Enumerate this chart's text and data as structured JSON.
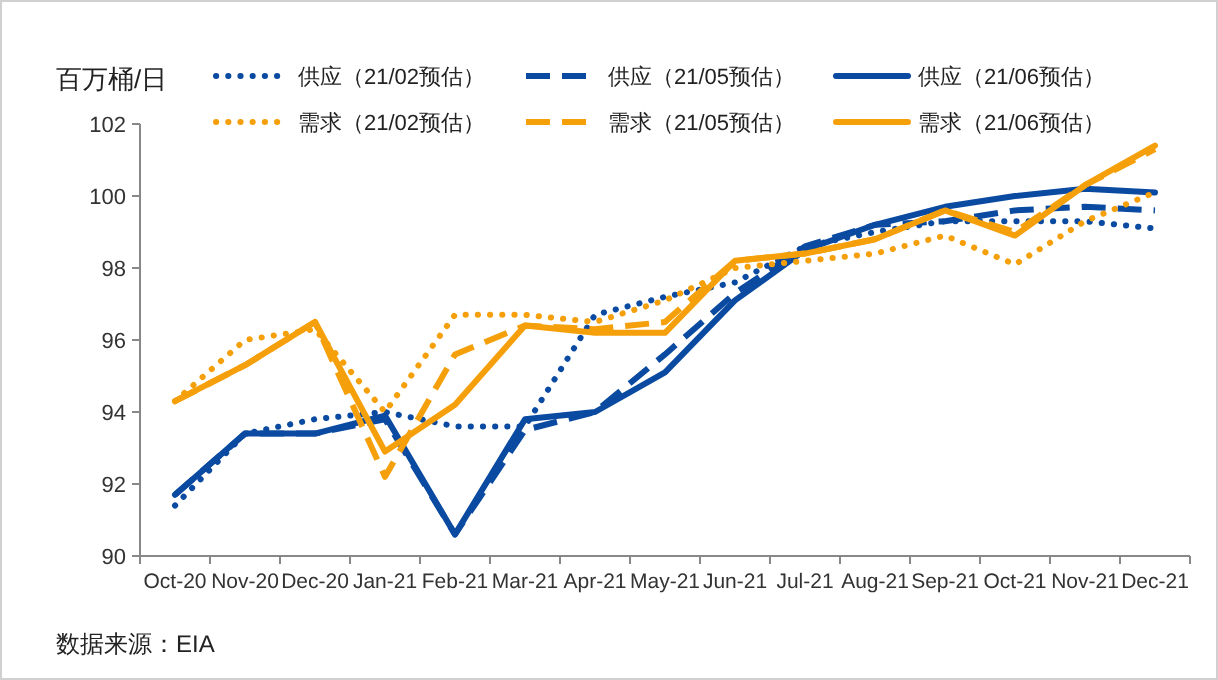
{
  "chart_data": {
    "type": "line",
    "ylabel": "百万桶/日",
    "categories": [
      "Oct-20",
      "Nov-20",
      "Dec-20",
      "Jan-21",
      "Feb-21",
      "Mar-21",
      "Apr-21",
      "May-21",
      "Jun-21",
      "Jul-21",
      "Aug-21",
      "Sep-21",
      "Oct-21",
      "Nov-21",
      "Dec-21"
    ],
    "series": [
      {
        "name": "供应（21/02预估）",
        "color": "#0a4aa0",
        "line_style": "dotted",
        "values": [
          91.4,
          93.4,
          93.8,
          94.0,
          93.6,
          93.6,
          96.7,
          97.2,
          97.6,
          98.6,
          99.0,
          99.3,
          99.3,
          99.3,
          99.1
        ]
      },
      {
        "name": "供应（21/05预估）",
        "color": "#0a4aa0",
        "line_style": "dashed",
        "values": [
          91.7,
          93.4,
          93.4,
          93.8,
          90.6,
          93.5,
          94.0,
          95.6,
          97.3,
          98.6,
          99.2,
          99.3,
          99.6,
          99.7,
          99.6
        ]
      },
      {
        "name": "供应（21/06预估）",
        "color": "#0a4aa0",
        "line_style": "solid",
        "values": [
          91.7,
          93.4,
          93.4,
          93.9,
          90.6,
          93.8,
          94.0,
          95.1,
          97.1,
          98.5,
          99.2,
          99.7,
          100.0,
          100.2,
          100.1
        ]
      },
      {
        "name": "需求（21/02预估）",
        "color": "#f5a00a",
        "line_style": "dotted",
        "values": [
          94.3,
          96.0,
          96.3,
          94.0,
          96.7,
          96.7,
          96.5,
          97.1,
          98.0,
          98.2,
          98.4,
          98.9,
          98.1,
          99.3,
          100.1
        ]
      },
      {
        "name": "需求（21/05预估）",
        "color": "#f5a00a",
        "line_style": "dashed",
        "values": [
          94.3,
          95.3,
          96.5,
          92.2,
          95.6,
          96.4,
          96.3,
          96.5,
          98.2,
          98.4,
          98.8,
          99.6,
          99.0,
          100.3,
          101.3
        ]
      },
      {
        "name": "需求（21/06预估）",
        "color": "#f5a00a",
        "line_style": "solid",
        "values": [
          94.3,
          95.3,
          96.5,
          92.9,
          94.2,
          96.4,
          96.2,
          96.2,
          98.2,
          98.4,
          98.8,
          99.6,
          98.9,
          100.3,
          101.4
        ]
      }
    ],
    "ylim": [
      90,
      102
    ],
    "yticks": [
      90,
      92,
      94,
      96,
      98,
      100,
      102
    ],
    "legend": "top",
    "annotations": [
      "数据来源：EIA"
    ]
  }
}
